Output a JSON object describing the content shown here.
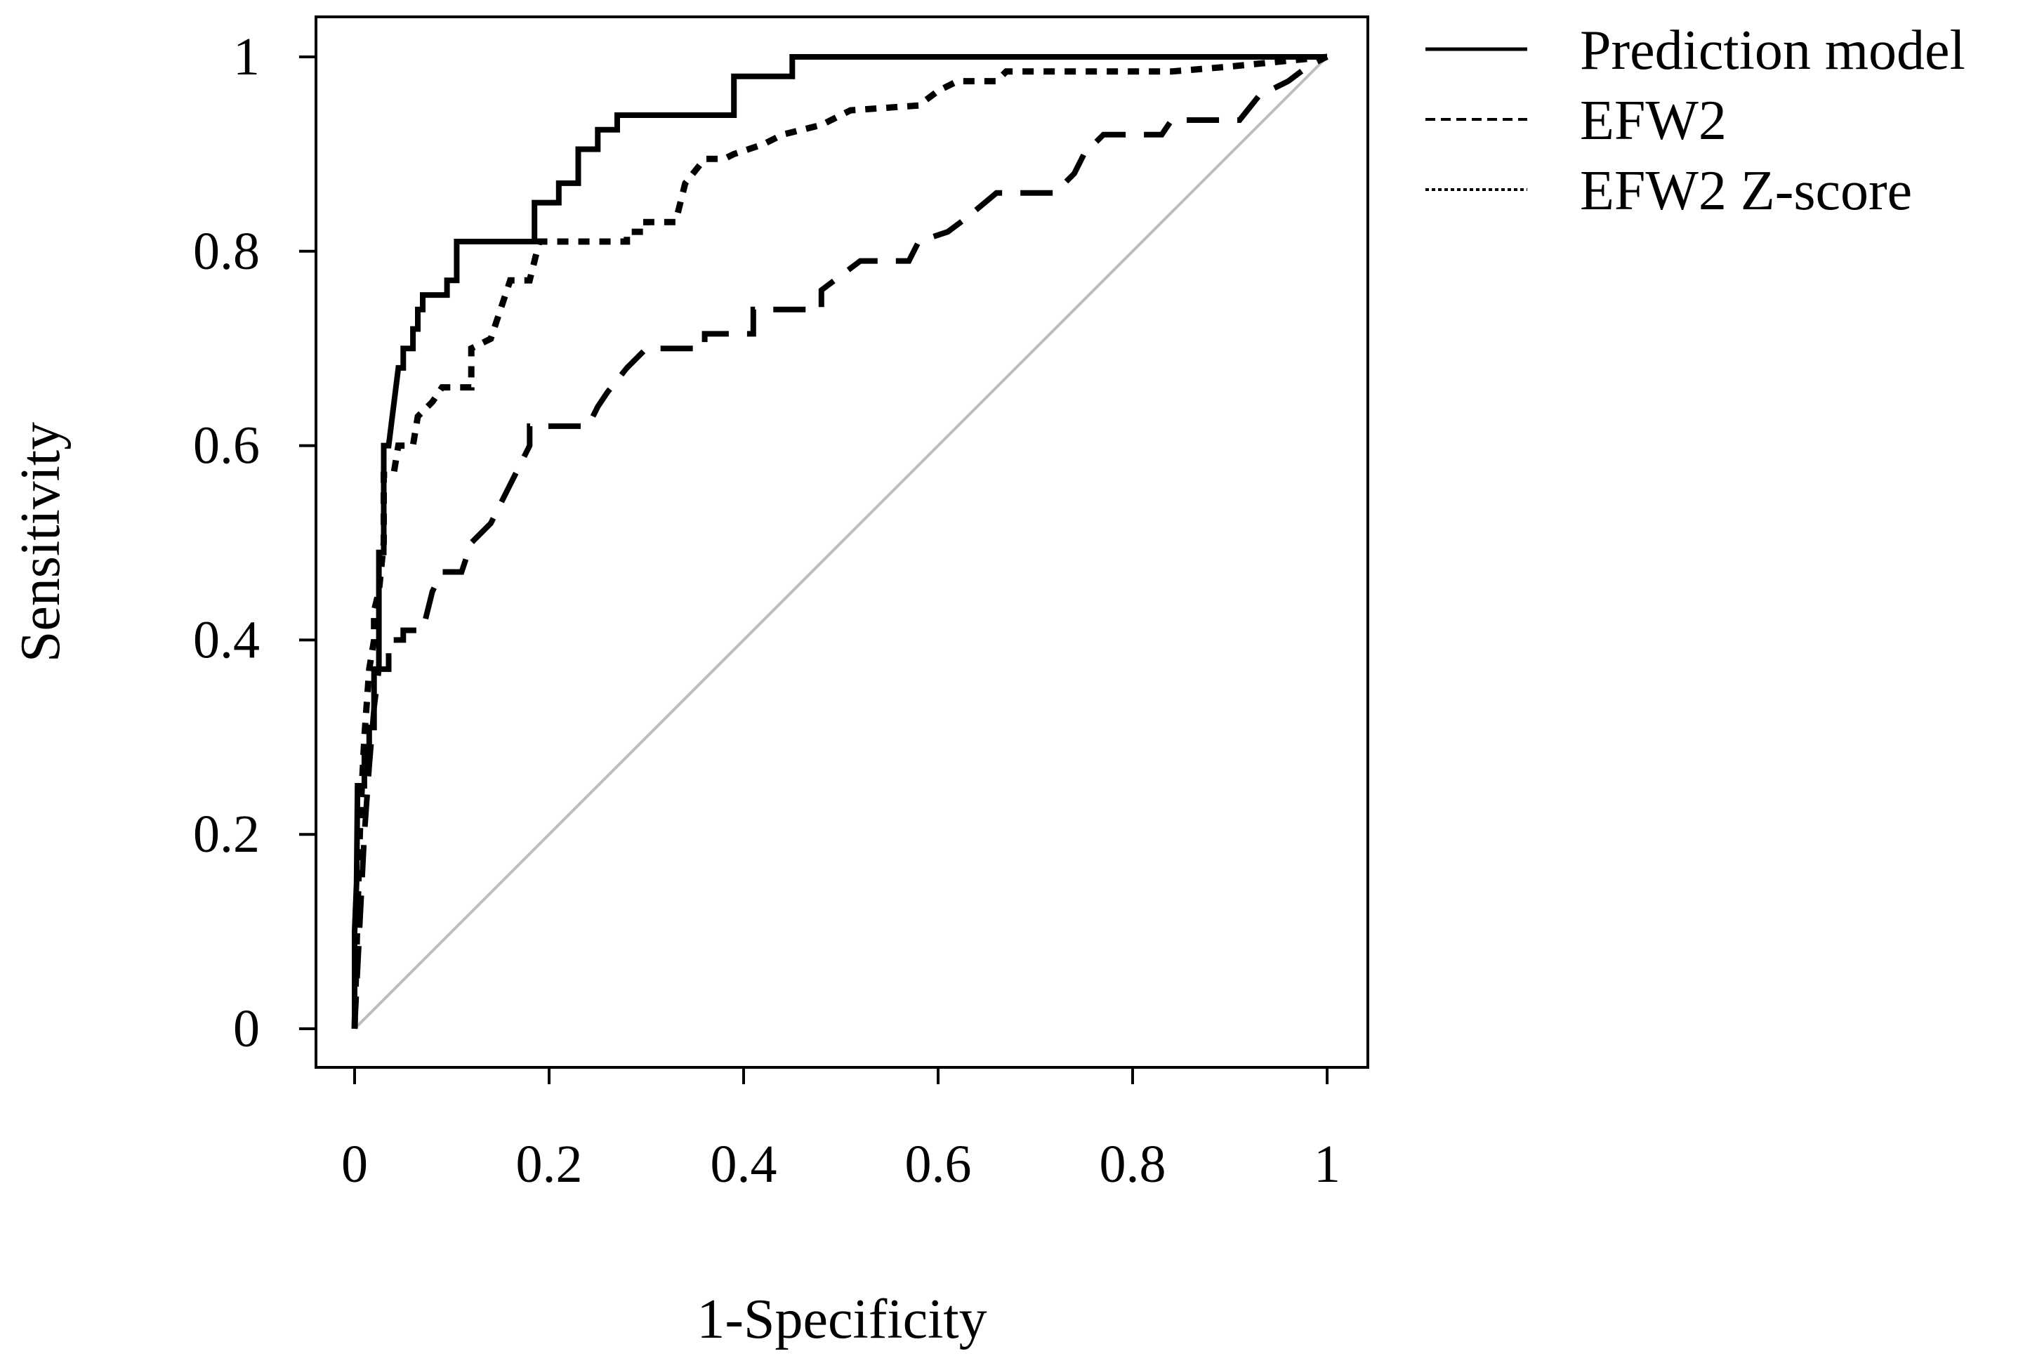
{
  "chart_data": {
    "type": "line",
    "title": "",
    "xlabel": "1-Specificity",
    "ylabel": "Sensitivity",
    "xlim": [
      0,
      1
    ],
    "ylim": [
      0,
      1
    ],
    "x_ticks": [
      0,
      0.2,
      0.4,
      0.6,
      0.8,
      1
    ],
    "x_tick_labels": [
      "0",
      "0.2",
      "0.4",
      "0.6",
      "0.8",
      "1"
    ],
    "y_ticks": [
      0,
      0.2,
      0.4,
      0.6,
      0.8,
      1
    ],
    "y_tick_labels": [
      "0",
      "0.2",
      "0.4",
      "0.6",
      "0.8",
      "1"
    ],
    "legend_position": "outside-top-right",
    "reference_line": {
      "name": "chance",
      "color": "#bdbdbd",
      "points": [
        [
          0,
          0
        ],
        [
          1,
          1
        ]
      ]
    },
    "series": [
      {
        "name": "Prediction model",
        "style": "solid",
        "color": "#000000",
        "points": [
          [
            0,
            0
          ],
          [
            0,
            0.1
          ],
          [
            0.002,
            0.15
          ],
          [
            0.003,
            0.25
          ],
          [
            0.01,
            0.25
          ],
          [
            0.01,
            0.28
          ],
          [
            0.015,
            0.28
          ],
          [
            0.015,
            0.31
          ],
          [
            0.02,
            0.31
          ],
          [
            0.02,
            0.37
          ],
          [
            0.025,
            0.37
          ],
          [
            0.025,
            0.49
          ],
          [
            0.03,
            0.49
          ],
          [
            0.03,
            0.6
          ],
          [
            0.035,
            0.6
          ],
          [
            0.04,
            0.64
          ],
          [
            0.045,
            0.68
          ],
          [
            0.05,
            0.68
          ],
          [
            0.05,
            0.7
          ],
          [
            0.06,
            0.7
          ],
          [
            0.06,
            0.72
          ],
          [
            0.065,
            0.72
          ],
          [
            0.065,
            0.74
          ],
          [
            0.07,
            0.74
          ],
          [
            0.07,
            0.755
          ],
          [
            0.095,
            0.755
          ],
          [
            0.095,
            0.77
          ],
          [
            0.105,
            0.77
          ],
          [
            0.105,
            0.81
          ],
          [
            0.185,
            0.81
          ],
          [
            0.185,
            0.85
          ],
          [
            0.21,
            0.85
          ],
          [
            0.21,
            0.87
          ],
          [
            0.23,
            0.87
          ],
          [
            0.23,
            0.905
          ],
          [
            0.25,
            0.905
          ],
          [
            0.25,
            0.925
          ],
          [
            0.27,
            0.925
          ],
          [
            0.27,
            0.94
          ],
          [
            0.39,
            0.94
          ],
          [
            0.39,
            0.98
          ],
          [
            0.45,
            0.98
          ],
          [
            0.45,
            1
          ],
          [
            1,
            1
          ]
        ]
      },
      {
        "name": "EFW2",
        "style": "dashed",
        "color": "#000000",
        "points": [
          [
            0,
            0
          ],
          [
            0.005,
            0.1
          ],
          [
            0.01,
            0.2
          ],
          [
            0.015,
            0.27
          ],
          [
            0.02,
            0.33
          ],
          [
            0.025,
            0.37
          ],
          [
            0.035,
            0.37
          ],
          [
            0.035,
            0.4
          ],
          [
            0.05,
            0.4
          ],
          [
            0.05,
            0.41
          ],
          [
            0.07,
            0.41
          ],
          [
            0.08,
            0.45
          ],
          [
            0.09,
            0.47
          ],
          [
            0.11,
            0.47
          ],
          [
            0.12,
            0.5
          ],
          [
            0.14,
            0.52
          ],
          [
            0.16,
            0.56
          ],
          [
            0.17,
            0.58
          ],
          [
            0.18,
            0.6
          ],
          [
            0.18,
            0.62
          ],
          [
            0.24,
            0.62
          ],
          [
            0.25,
            0.64
          ],
          [
            0.26,
            0.655
          ],
          [
            0.28,
            0.68
          ],
          [
            0.3,
            0.7
          ],
          [
            0.36,
            0.7
          ],
          [
            0.36,
            0.715
          ],
          [
            0.41,
            0.715
          ],
          [
            0.41,
            0.74
          ],
          [
            0.48,
            0.74
          ],
          [
            0.48,
            0.76
          ],
          [
            0.5,
            0.775
          ],
          [
            0.52,
            0.79
          ],
          [
            0.57,
            0.79
          ],
          [
            0.58,
            0.81
          ],
          [
            0.61,
            0.82
          ],
          [
            0.63,
            0.835
          ],
          [
            0.66,
            0.86
          ],
          [
            0.72,
            0.86
          ],
          [
            0.74,
            0.88
          ],
          [
            0.75,
            0.9
          ],
          [
            0.77,
            0.92
          ],
          [
            0.83,
            0.92
          ],
          [
            0.84,
            0.935
          ],
          [
            0.91,
            0.935
          ],
          [
            0.93,
            0.96
          ],
          [
            0.96,
            0.975
          ],
          [
            0.98,
            0.99
          ],
          [
            1,
            1
          ]
        ]
      },
      {
        "name": "EFW2 Z-score",
        "style": "dotted",
        "color": "#000000",
        "points": [
          [
            0,
            0
          ],
          [
            0.003,
            0.12
          ],
          [
            0.006,
            0.22
          ],
          [
            0.01,
            0.3
          ],
          [
            0.015,
            0.37
          ],
          [
            0.02,
            0.4
          ],
          [
            0.02,
            0.43
          ],
          [
            0.025,
            0.45
          ],
          [
            0.03,
            0.5
          ],
          [
            0.03,
            0.57
          ],
          [
            0.04,
            0.57
          ],
          [
            0.045,
            0.6
          ],
          [
            0.06,
            0.6
          ],
          [
            0.065,
            0.63
          ],
          [
            0.08,
            0.645
          ],
          [
            0.09,
            0.66
          ],
          [
            0.12,
            0.66
          ],
          [
            0.12,
            0.7
          ],
          [
            0.14,
            0.71
          ],
          [
            0.15,
            0.74
          ],
          [
            0.16,
            0.77
          ],
          [
            0.18,
            0.77
          ],
          [
            0.19,
            0.81
          ],
          [
            0.28,
            0.81
          ],
          [
            0.28,
            0.82
          ],
          [
            0.3,
            0.82
          ],
          [
            0.3,
            0.83
          ],
          [
            0.33,
            0.83
          ],
          [
            0.34,
            0.87
          ],
          [
            0.36,
            0.895
          ],
          [
            0.38,
            0.895
          ],
          [
            0.39,
            0.9
          ],
          [
            0.42,
            0.91
          ],
          [
            0.44,
            0.92
          ],
          [
            0.48,
            0.93
          ],
          [
            0.51,
            0.945
          ],
          [
            0.58,
            0.95
          ],
          [
            0.6,
            0.965
          ],
          [
            0.62,
            0.975
          ],
          [
            0.66,
            0.975
          ],
          [
            0.67,
            0.985
          ],
          [
            0.84,
            0.985
          ],
          [
            0.9,
            0.99
          ],
          [
            1,
            1
          ]
        ]
      }
    ]
  }
}
